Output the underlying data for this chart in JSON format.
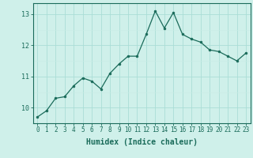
{
  "x": [
    0,
    1,
    2,
    3,
    4,
    5,
    6,
    7,
    8,
    9,
    10,
    11,
    12,
    13,
    14,
    15,
    16,
    17,
    18,
    19,
    20,
    21,
    22,
    23
  ],
  "y": [
    9.7,
    9.9,
    10.3,
    10.35,
    10.7,
    10.95,
    10.85,
    10.6,
    11.1,
    11.4,
    11.65,
    11.65,
    12.35,
    13.1,
    12.55,
    13.05,
    12.35,
    12.2,
    12.1,
    11.85,
    11.8,
    11.65,
    11.5,
    11.75
  ],
  "line_color": "#1a6b5a",
  "marker": "o",
  "marker_size": 2.0,
  "bg_color": "#cff0ea",
  "grid_color_major": "#aaddd6",
  "grid_color_minor": "#c8ebe6",
  "xlabel": "Humidex (Indice chaleur)",
  "xlim": [
    -0.5,
    23.5
  ],
  "ylim": [
    9.5,
    13.35
  ],
  "yticks": [
    10,
    11,
    12,
    13
  ],
  "xticks": [
    0,
    1,
    2,
    3,
    4,
    5,
    6,
    7,
    8,
    9,
    10,
    11,
    12,
    13,
    14,
    15,
    16,
    17,
    18,
    19,
    20,
    21,
    22,
    23
  ],
  "tick_color": "#1a6b5a",
  "label_color": "#1a6b5a",
  "axis_color": "#1a6b5a",
  "tick_fontsize": 5.5,
  "xlabel_fontsize": 7.0
}
